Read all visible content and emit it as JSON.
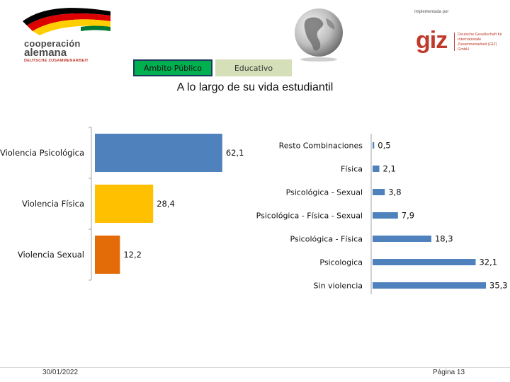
{
  "header": {
    "cooperacion_line1": "cooperación",
    "cooperacion_line2": "alemana",
    "cooperacion_line3": "DEUTSCHE ZUSAMMENARBEIT",
    "implementada_por": "Implementada por",
    "giz_logo": "giz",
    "giz_name": "Deutsche Gesellschaft für Internationale Zusammenarbeit (GIZ) GmbH",
    "colors": {
      "giz_red": "#c0392b",
      "flag_black": "#000000",
      "flag_red": "#dd0000",
      "flag_gold": "#ffce00",
      "flag_green": "#007934"
    }
  },
  "tabs": [
    {
      "label": "Ámbito Público",
      "active": true,
      "color": "#00b050"
    },
    {
      "label": "Educativo",
      "active": false,
      "color": "#d5e0b8"
    }
  ],
  "title": "A lo largo de su vida estudiantil",
  "chart_data": [
    {
      "type": "bar",
      "orientation": "horizontal",
      "categories": [
        "Violencia Psicológica",
        "Violencia Física",
        "Violencia Sexual"
      ],
      "values": [
        62.1,
        28.4,
        12.2
      ],
      "value_labels": [
        "62,1",
        "28,4",
        "12,2"
      ],
      "colors": [
        "#4f81bd",
        "#ffc000",
        "#e36c09"
      ],
      "xlim": [
        0,
        70
      ]
    },
    {
      "type": "bar",
      "orientation": "horizontal",
      "categories": [
        "Resto Combinaciones",
        "Física",
        "Psicológica - Sexual",
        "Psicológica - Física - Sexual",
        "Psicológica - Física",
        "Psicologica",
        "Sin violencia"
      ],
      "values": [
        0.5,
        2.1,
        3.8,
        7.9,
        18.3,
        32.1,
        35.3
      ],
      "value_labels": [
        "0,5",
        "2,1",
        "3,8",
        "7,9",
        "18,3",
        "32,1",
        "35,3"
      ],
      "colors": [
        "#4f81bd"
      ],
      "xlim": [
        0,
        38
      ]
    }
  ],
  "footer": {
    "date": "30/01/2022",
    "page": "Página 13"
  }
}
